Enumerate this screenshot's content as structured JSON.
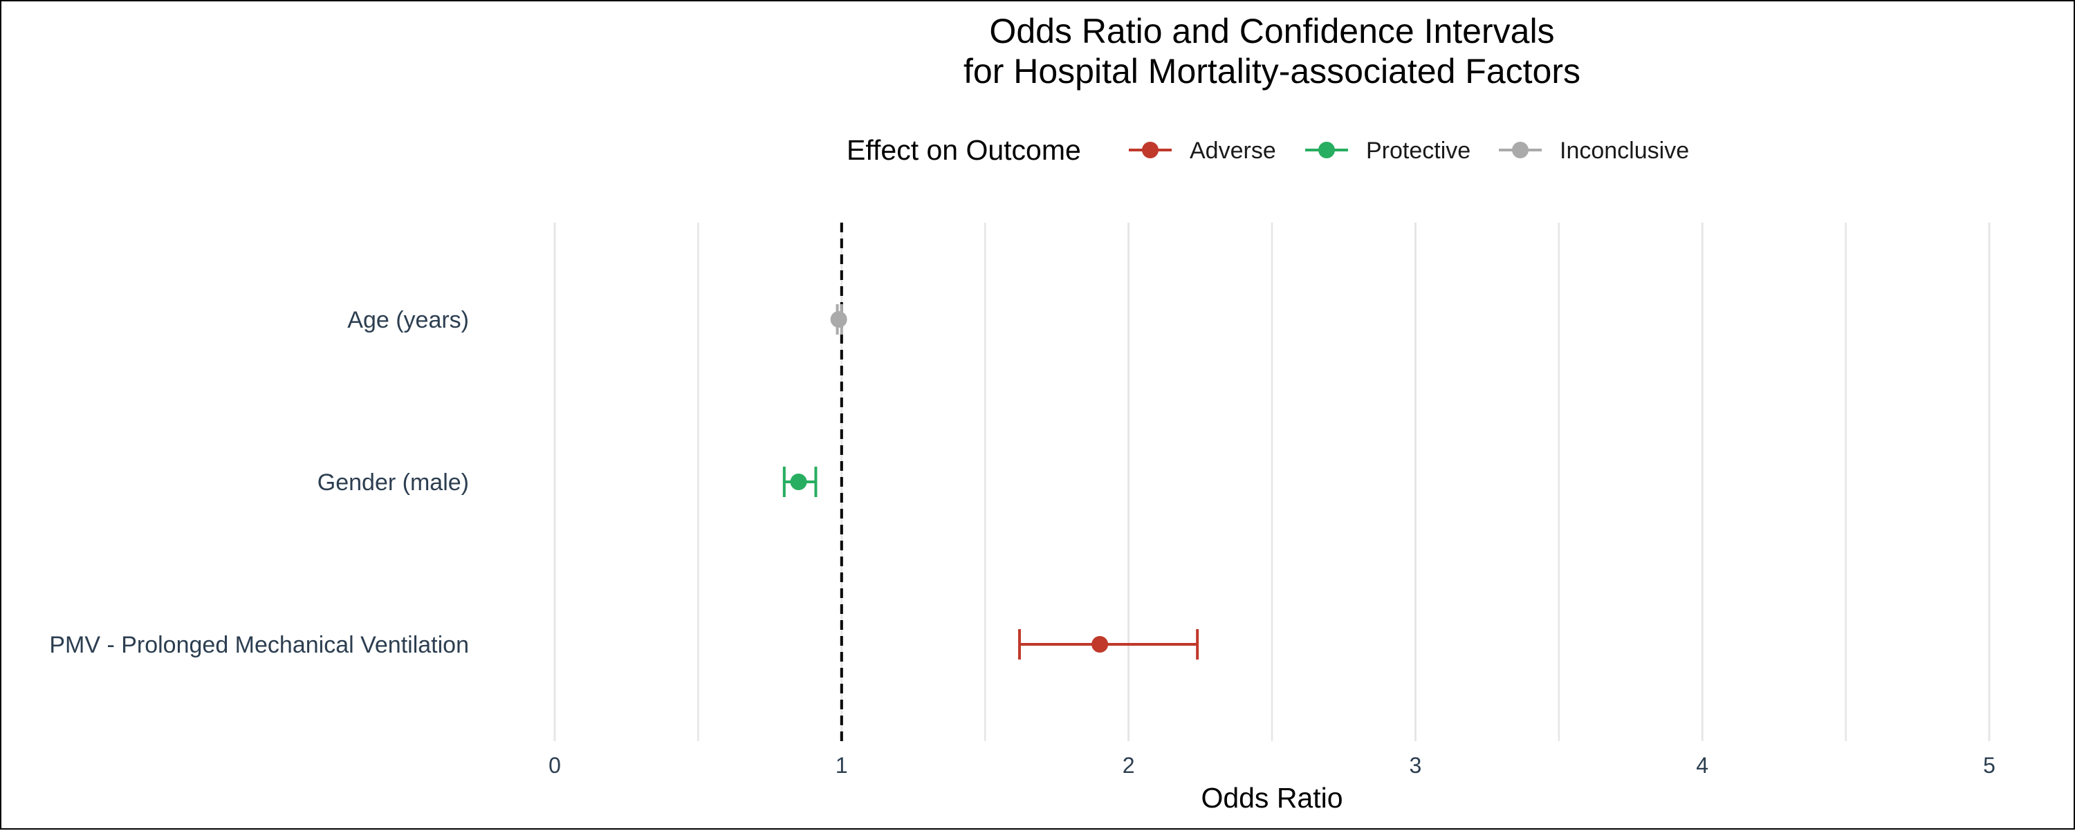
{
  "chart_data": {
    "type": "forest",
    "title": [
      "Odds Ratio and Confidence Intervals",
      "for Hospital Mortality-associated Factors"
    ],
    "xlabel": "Odds Ratio",
    "ylabel": "",
    "xlim": [
      0,
      5
    ],
    "x_ticks": [
      "0",
      "1",
      "2",
      "3",
      "4",
      "5"
    ],
    "minor_gridlines": [
      0.5,
      1.5,
      2.5,
      3.5,
      4.5
    ],
    "grid": true,
    "reference_line": 1,
    "legend": {
      "title": "Effect on Outcome",
      "placement": "top",
      "entries": [
        {
          "name": "Adverse",
          "color": "#c0392b"
        },
        {
          "name": "Protective",
          "color": "#27ae60"
        },
        {
          "name": "Inconclusive",
          "color": "#aaaaaa"
        }
      ]
    },
    "factors": [
      {
        "label": "Age (years)",
        "or": 0.99,
        "lower": 0.985,
        "upper": 1.0,
        "effect": "Inconclusive"
      },
      {
        "label": "Gender (male)",
        "or": 0.85,
        "lower": 0.8,
        "upper": 0.91,
        "effect": "Protective"
      },
      {
        "label": "PMV - Prolonged Mechanical Ventilation",
        "or": 1.9,
        "lower": 1.62,
        "upper": 2.24,
        "effect": "Adverse"
      }
    ],
    "colors": {
      "Adverse": "#c0392b",
      "Protective": "#27ae60",
      "Inconclusive": "#aaaaaa",
      "grid": "#e6e6e6",
      "reference": "#000000"
    }
  }
}
